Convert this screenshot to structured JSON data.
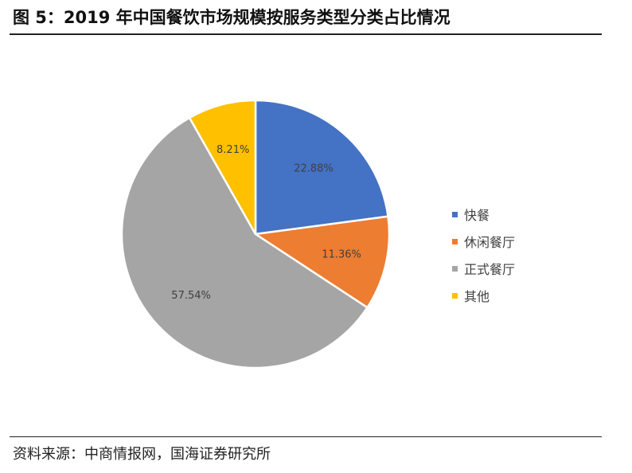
{
  "figure": {
    "title": "图 5：2019 年中国餐饮市场规模按服务类型分类占比情况",
    "source": "资料来源：中商情报网，国海证券研究所"
  },
  "chart_data": {
    "type": "pie",
    "start_angle_deg": 0,
    "direction": "clockwise",
    "legend_position": "right",
    "labels": [
      "快餐",
      "休闲餐厅",
      "正式餐厅",
      "其他"
    ],
    "values": [
      22.88,
      11.36,
      57.54,
      8.21
    ],
    "value_labels": [
      "22.88%",
      "11.36%",
      "57.54%",
      "8.21%"
    ],
    "colors": [
      "#4472C4",
      "#ED7D31",
      "#A5A5A5",
      "#FFC000"
    ]
  }
}
